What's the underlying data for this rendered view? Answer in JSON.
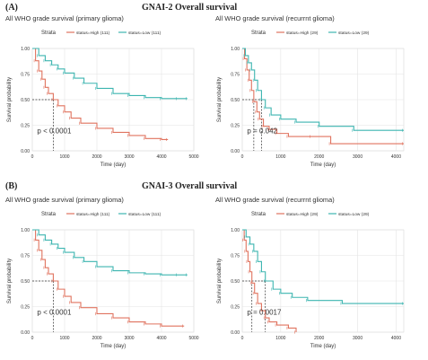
{
  "figure": {
    "panels": [
      {
        "tag": "(A)",
        "title": "GNAI-2 Overall survival"
      },
      {
        "tag": "(B)",
        "title": "GNAI-3 Overall survival"
      }
    ]
  },
  "colors": {
    "high": "#e0735f",
    "low": "#3db5b0",
    "grid": "#e4e4e4",
    "panel_bg": "#ffffff",
    "text": "#333333"
  },
  "chart_data": [
    {
      "type": "line",
      "title": "All WHO grade survival (primary glioma)",
      "legend_title": "Strata",
      "legend_position": "top",
      "xlabel": "Time (day)",
      "ylabel": "Survival probability",
      "xlim": [
        0,
        5000
      ],
      "ylim": [
        0,
        1
      ],
      "xticks": [
        "0",
        "1000",
        "2000",
        "3000",
        "4000",
        "5000"
      ],
      "yticks": [
        "0.00",
        "0.25",
        "0.50",
        "0.75",
        "1.00"
      ],
      "grid": true,
      "pvalue": "p < 0.0001",
      "median_lines": [
        650
      ],
      "series": [
        {
          "name": "status=High (111)",
          "color": "#e0735f",
          "x": [
            0,
            100,
            200,
            300,
            400,
            500,
            650,
            800,
            1000,
            1200,
            1500,
            2000,
            2500,
            3000,
            3500,
            4000,
            4200
          ],
          "y": [
            1.0,
            0.88,
            0.78,
            0.7,
            0.62,
            0.56,
            0.5,
            0.44,
            0.38,
            0.32,
            0.27,
            0.22,
            0.18,
            0.15,
            0.12,
            0.11,
            0.11
          ]
        },
        {
          "name": "status=Low (111)",
          "color": "#3db5b0",
          "x": [
            0,
            200,
            400,
            600,
            800,
            1000,
            1300,
            1600,
            2000,
            2500,
            3000,
            3500,
            4000,
            4500,
            4800
          ],
          "y": [
            1.0,
            0.93,
            0.88,
            0.84,
            0.8,
            0.76,
            0.71,
            0.66,
            0.61,
            0.56,
            0.54,
            0.52,
            0.51,
            0.51,
            0.51
          ]
        }
      ]
    },
    {
      "type": "line",
      "title": "All WHO grade survival (recurrnt glioma)",
      "legend_title": "Strata",
      "legend_position": "top",
      "xlabel": "Time (day)",
      "ylabel": "Survival probability",
      "xlim": [
        0,
        4200
      ],
      "ylim": [
        0,
        1
      ],
      "xticks": [
        "0",
        "1000",
        "2000",
        "3000",
        "4000"
      ],
      "yticks": [
        "0.00",
        "0.25",
        "0.50",
        "0.75",
        "1.00"
      ],
      "grid": true,
      "pvalue": "p = 0.042",
      "median_lines": [
        300,
        500
      ],
      "series": [
        {
          "name": "status=High (29)",
          "color": "#e0735f",
          "x": [
            0,
            60,
            120,
            180,
            240,
            300,
            380,
            450,
            550,
            700,
            900,
            1200,
            1800,
            2300,
            4200
          ],
          "y": [
            1.0,
            0.9,
            0.79,
            0.69,
            0.59,
            0.48,
            0.38,
            0.31,
            0.24,
            0.21,
            0.17,
            0.14,
            0.14,
            0.07,
            0.07
          ]
        },
        {
          "name": "status=Low (29)",
          "color": "#3db5b0",
          "x": [
            0,
            80,
            160,
            240,
            320,
            400,
            500,
            600,
            750,
            1000,
            1400,
            2000,
            2900,
            4200
          ],
          "y": [
            1.0,
            0.93,
            0.86,
            0.79,
            0.69,
            0.59,
            0.5,
            0.42,
            0.35,
            0.31,
            0.28,
            0.24,
            0.2,
            0.2
          ]
        }
      ]
    },
    {
      "type": "line",
      "title": "All WHO grade survival (primary glioma)",
      "legend_title": "Strata",
      "legend_position": "top",
      "xlabel": "Time (day)",
      "ylabel": "Survival probability",
      "xlim": [
        0,
        5000
      ],
      "ylim": [
        0,
        1
      ],
      "xticks": [
        "0",
        "1000",
        "2000",
        "3000",
        "4000",
        "5000"
      ],
      "yticks": [
        "0.00",
        "0.25",
        "0.50",
        "0.75",
        "1.00"
      ],
      "grid": true,
      "pvalue": "p < 0.0001",
      "median_lines": [
        650
      ],
      "series": [
        {
          "name": "status=High (111)",
          "color": "#e0735f",
          "x": [
            0,
            100,
            200,
            300,
            400,
            500,
            650,
            800,
            1000,
            1200,
            1500,
            2000,
            2500,
            3000,
            3500,
            4000,
            4700
          ],
          "y": [
            1.0,
            0.9,
            0.8,
            0.71,
            0.63,
            0.57,
            0.5,
            0.42,
            0.35,
            0.29,
            0.24,
            0.18,
            0.14,
            0.1,
            0.08,
            0.06,
            0.06
          ]
        },
        {
          "name": "status=Low (111)",
          "color": "#3db5b0",
          "x": [
            0,
            200,
            400,
            600,
            800,
            1000,
            1300,
            1600,
            2000,
            2500,
            3000,
            3500,
            4000,
            4500,
            4800
          ],
          "y": [
            1.0,
            0.95,
            0.9,
            0.86,
            0.82,
            0.78,
            0.73,
            0.69,
            0.64,
            0.6,
            0.58,
            0.57,
            0.56,
            0.56,
            0.56
          ]
        }
      ]
    },
    {
      "type": "line",
      "title": "All WHO grade survival (recurrnt glioma)",
      "legend_title": "Strata",
      "legend_position": "top",
      "xlabel": "Time (day)",
      "ylabel": "Survival probability",
      "xlim": [
        0,
        4200
      ],
      "ylim": [
        0,
        1
      ],
      "xticks": [
        "0",
        "1000",
        "2000",
        "3000",
        "4000"
      ],
      "yticks": [
        "0.00",
        "0.25",
        "0.50",
        "0.75",
        "1.00"
      ],
      "grid": true,
      "pvalue": "p = 0.0017",
      "median_lines": [
        250,
        600
      ],
      "series": [
        {
          "name": "status=High (29)",
          "color": "#e0735f",
          "x": [
            0,
            50,
            100,
            150,
            200,
            250,
            320,
            400,
            500,
            600,
            700,
            900,
            1200,
            1400
          ],
          "y": [
            1.0,
            0.9,
            0.79,
            0.69,
            0.59,
            0.48,
            0.38,
            0.28,
            0.21,
            0.14,
            0.1,
            0.07,
            0.04,
            0.0
          ]
        },
        {
          "name": "status=Low (29)",
          "color": "#3db5b0",
          "x": [
            0,
            100,
            200,
            300,
            400,
            500,
            600,
            800,
            1000,
            1300,
            1700,
            2600,
            4200
          ],
          "y": [
            1.0,
            0.93,
            0.86,
            0.79,
            0.69,
            0.59,
            0.5,
            0.42,
            0.38,
            0.34,
            0.31,
            0.28,
            0.28
          ]
        }
      ]
    }
  ]
}
